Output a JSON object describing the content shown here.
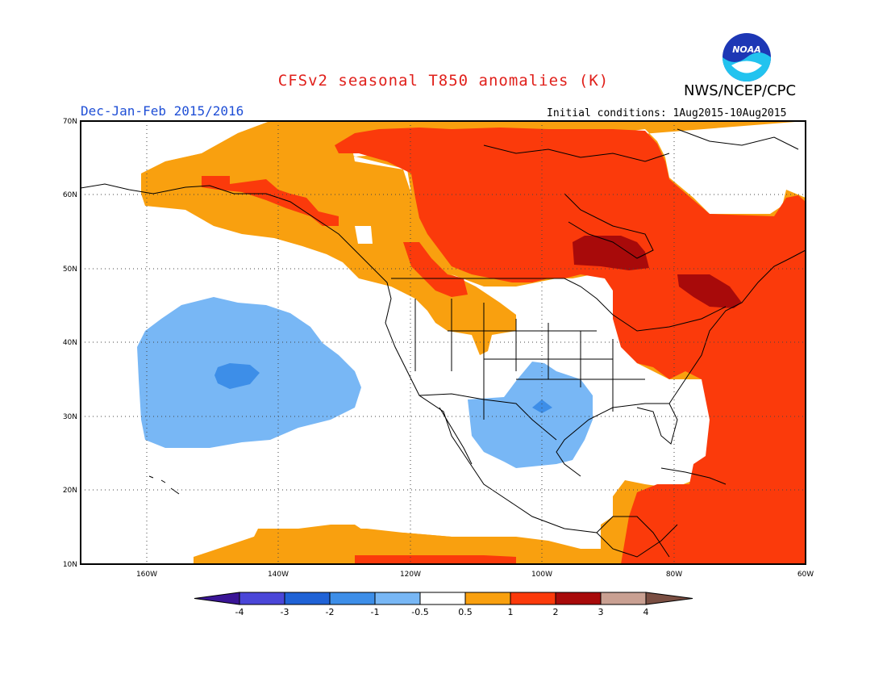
{
  "title": "CFSv2 seasonal T850 anomalies (K)",
  "agency": "NWS/NCEP/CPC",
  "logo_text": "NOAA",
  "season": "Dec-Jan-Feb 2015/2016",
  "initial_conditions": "Initial conditions: 1Aug2015-10Aug2015",
  "map": {
    "lat_range": [
      10,
      70
    ],
    "lon_range": [
      -170,
      -60
    ],
    "lat_labels": [
      "70N",
      "60N",
      "50N",
      "40N",
      "30N",
      "20N",
      "10N"
    ],
    "lon_labels": [
      "160W",
      "140W",
      "120W",
      "100W",
      "80W",
      "60W"
    ]
  },
  "colorbar": {
    "labels": [
      "-4",
      "-3",
      "-2",
      "-1",
      "-0.5",
      "0.5",
      "1",
      "2",
      "3",
      "4"
    ],
    "colors": [
      "#3a1596",
      "#4a46d8",
      "#1f62d6",
      "#3d8ee8",
      "#78b7f5",
      "#ffffff",
      "#f9a00f",
      "#fb3a0b",
      "#a80a0a",
      "#c9a092",
      "#7a4e42"
    ]
  }
}
